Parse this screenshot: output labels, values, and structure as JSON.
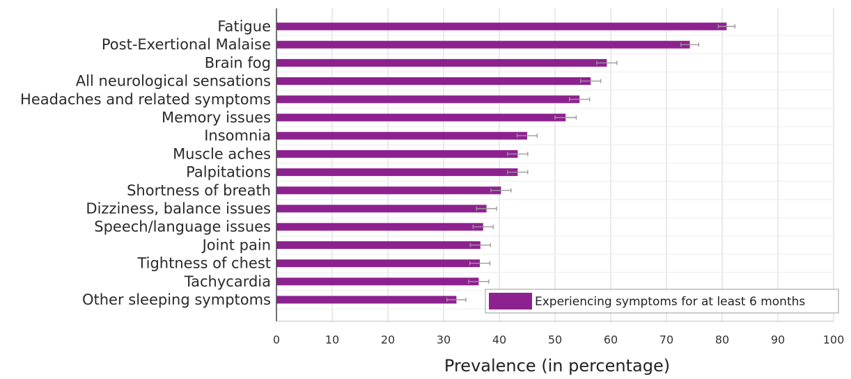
{
  "chart_data": {
    "type": "bar",
    "orientation": "horizontal",
    "categories": [
      "Fatigue",
      "Post-Exertional Malaise",
      "Brain fog",
      "All neurological sensations",
      "Headaches and related symptoms",
      "Memory issues",
      "Insomnia",
      "Muscle aches",
      "Palpitations",
      "Shortness of breath",
      "Dizziness, balance issues",
      "Speech/language issues",
      "Joint pain",
      "Tightness of chest",
      "Tachycardia",
      "Other sleeping symptoms"
    ],
    "series": [
      {
        "name": "Experiencing symptoms for at least 6 months",
        "values": [
          80.8,
          74.2,
          59.3,
          56.4,
          54.4,
          51.9,
          45.0,
          43.3,
          43.3,
          40.3,
          37.7,
          37.1,
          36.6,
          36.5,
          36.3,
          32.3
        ],
        "errors": [
          1.5,
          1.6,
          1.8,
          1.8,
          1.8,
          1.9,
          1.8,
          1.8,
          1.8,
          1.8,
          1.8,
          1.8,
          1.8,
          1.8,
          1.8,
          1.7
        ]
      }
    ],
    "xlabel": "Prevalence (in percentage)",
    "ylabel": "",
    "xlim": [
      0,
      100
    ],
    "xticks": [
      0,
      10,
      20,
      30,
      40,
      50,
      60,
      70,
      80,
      90,
      100
    ],
    "grid": true,
    "legend_position": "bottom-right",
    "colors": {
      "bar": "#8e2190",
      "error_bar": "#9a9a9a",
      "grid": "#d6d6d6",
      "axis": "#444444"
    }
  }
}
